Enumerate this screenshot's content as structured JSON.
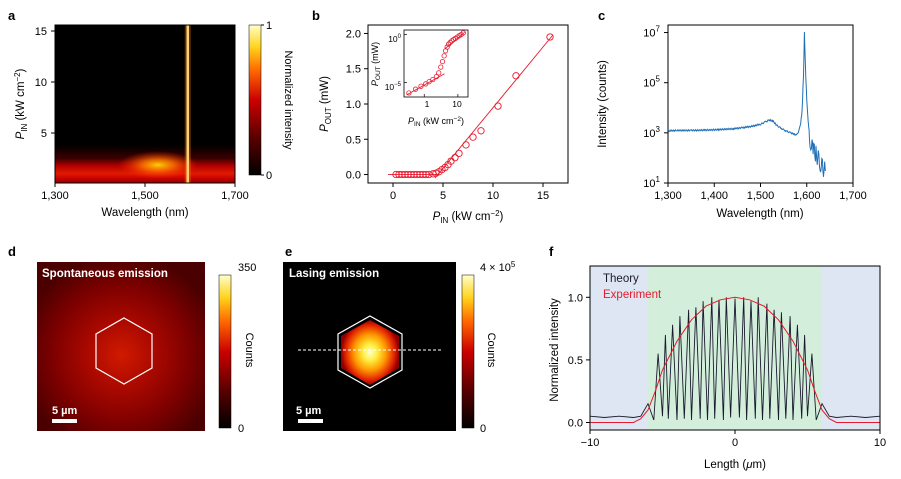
{
  "panels": {
    "a": {
      "letter": "a",
      "chart_data": {
        "type": "heatmap",
        "xlabel": "Wavelength (nm)",
        "ylabel_main": "P",
        "ylabel_sub": "IN",
        "ylabel_unit": " (kW cm",
        "ylabel_sup": "−2",
        "ylabel_end": ")",
        "x_ticks": [
          "1,300",
          "1,500",
          "1,700"
        ],
        "x_tick_values": [
          1300,
          1500,
          1700
        ],
        "y_ticks": [
          "5",
          "10",
          "15"
        ],
        "y_tick_values": [
          5,
          10,
          15
        ],
        "xlim": [
          1300,
          1700
        ],
        "ylim": [
          0.3,
          16
        ],
        "lasing_wavelength": 1595,
        "colorbar": {
          "label": "Normalized intensity",
          "ticks": [
            "0",
            "1"
          ],
          "range": [
            0,
            1
          ]
        }
      }
    },
    "b": {
      "letter": "b",
      "chart_data": {
        "type": "scatter",
        "xlabel_main": "P",
        "xlabel_sub": "IN",
        "xlabel_unit": " (kW cm",
        "xlabel_sup": "−2",
        "xlabel_end": ")",
        "ylabel_main": "P",
        "ylabel_sub": "OUT",
        "ylabel_unit": " (mW)",
        "x_ticks": [
          "0",
          "5",
          "10",
          "15"
        ],
        "y_ticks": [
          "0.0",
          "0.5",
          "1.0",
          "1.5",
          "2.0"
        ],
        "xlim": [
          -2.5,
          17.5
        ],
        "ylim": [
          -0.12,
          2.12
        ],
        "x": [
          0.3,
          0.6,
          0.9,
          1.2,
          1.5,
          1.8,
          2.1,
          2.4,
          2.7,
          3.0,
          3.3,
          3.6,
          4.0,
          4.3,
          4.6,
          4.9,
          5.2,
          5.5,
          5.8,
          6.2,
          6.6,
          7.3,
          8.0,
          8.8,
          10.5,
          12.3,
          15.7
        ],
        "y": [
          0.0,
          0.0,
          0.0,
          0.0,
          0.0,
          0.0,
          0.0,
          0.0,
          0.0,
          0.0,
          0.0,
          0.0,
          0.01,
          0.02,
          0.04,
          0.07,
          0.1,
          0.14,
          0.19,
          0.24,
          0.3,
          0.42,
          0.53,
          0.62,
          0.97,
          1.4,
          1.95
        ],
        "fit_below": [
          [
            -0.5,
            0.0
          ],
          [
            4.5,
            0.0
          ]
        ],
        "fit_above": [
          [
            4.2,
            -0.05
          ],
          [
            16.0,
            1.98
          ]
        ],
        "inset": {
          "ylabel_main": "P",
          "ylabel_sub": "OUT",
          "ylabel_unit": " (mW)",
          "xlabel_main": "P",
          "xlabel_sub": "IN",
          "xlabel_unit": " (kW cm",
          "xlabel_sup": "−2",
          "xlabel_end": ")",
          "x_ticks": [
            "1",
            "10"
          ],
          "y_ticks": [
            {
              "base": "10",
              "exp": "0"
            },
            {
              "base": "10",
              "exp": "−5"
            }
          ],
          "scale": "log-log",
          "x": [
            0.35,
            0.55,
            0.8,
            1.1,
            1.4,
            1.8,
            2.3,
            2.7,
            3.1,
            3.5,
            3.9,
            4.3,
            4.8,
            5.3,
            5.9,
            6.6,
            7.4,
            8.4,
            9.6,
            11,
            12.5,
            14.5
          ],
          "y": [
            8e-07,
            2e-06,
            4e-06,
            7e-06,
            1.2e-05,
            2e-05,
            4e-05,
            0.0001,
            0.0004,
            0.0015,
            0.006,
            0.02,
            0.05,
            0.1,
            0.15,
            0.22,
            0.3,
            0.4,
            0.55,
            0.75,
            1.0,
            1.5
          ]
        }
      }
    },
    "c": {
      "letter": "c",
      "chart_data": {
        "type": "line",
        "xlabel": "Wavelength (nm)",
        "ylabel": "Intensity (counts)",
        "x_ticks": [
          "1,300",
          "1,400",
          "1,500",
          "1,600",
          "1,700"
        ],
        "x_tick_values": [
          1300,
          1400,
          1500,
          1600,
          1700
        ],
        "y_ticks": [
          {
            "base": "10",
            "exp": "1"
          },
          {
            "base": "10",
            "exp": "3"
          },
          {
            "base": "10",
            "exp": "5"
          },
          {
            "base": "10",
            "exp": "7"
          }
        ],
        "y_tick_exps": [
          1,
          3,
          5,
          7
        ],
        "yscale": "log",
        "xlim": [
          1300,
          1700
        ],
        "ylim": [
          10,
          20000000
        ],
        "x": [
          1300,
          1320,
          1350,
          1380,
          1410,
          1440,
          1460,
          1480,
          1500,
          1510,
          1520,
          1528,
          1535,
          1545,
          1555,
          1565,
          1572,
          1578,
          1583,
          1587,
          1590,
          1593,
          1595,
          1597,
          1600,
          1603,
          1606,
          1610,
          1615,
          1620,
          1630,
          1640
        ],
        "y": [
          1200,
          1250,
          1250,
          1280,
          1350,
          1450,
          1600,
          1800,
          2200,
          2700,
          3300,
          2800,
          2000,
          1500,
          1200,
          1000,
          900,
          800,
          1200,
          2500,
          8000,
          200000,
          10000000,
          500000,
          20000,
          3000,
          800,
          300,
          200,
          150,
          60,
          30
        ]
      }
    },
    "d": {
      "letter": "d",
      "title": "Spontaneous emission",
      "scale_bar": "5 µm",
      "chart_data": {
        "type": "heatmap",
        "colorbar": {
          "label": "Counts",
          "ticks": [
            "0",
            "350"
          ],
          "range": [
            0,
            350
          ]
        }
      }
    },
    "e": {
      "letter": "e",
      "title": "Lasing emission",
      "scale_bar": "5 µm",
      "chart_data": {
        "type": "heatmap",
        "colorbar": {
          "label": "Counts",
          "ticks": [
            "0",
            "4 × 10"
          ],
          "top_tick_base": "4 × 10",
          "top_tick_exp": "5",
          "range": [
            0,
            400000
          ]
        }
      }
    },
    "f": {
      "letter": "f",
      "chart_data": {
        "type": "line",
        "xlabel_main": "Length (",
        "xlabel_mu": "μ",
        "xlabel_end": "m)",
        "ylabel": "Normalized intensity",
        "x_ticks": [
          "−10",
          "0",
          "10"
        ],
        "x_tick_values": [
          -10,
          0,
          10
        ],
        "y_ticks": [
          "0.0",
          "0.5",
          "1.0"
        ],
        "y_tick_values": [
          0,
          0.5,
          1
        ],
        "xlim": [
          -10,
          10
        ],
        "ylim": [
          -0.06,
          1.25
        ],
        "cavity_region": [
          -6,
          6
        ],
        "series": [
          {
            "name": "Theory",
            "color": "#1a1a2e",
            "x": [
              -10,
              -9,
              -8,
              -7,
              -6.5,
              -6,
              -5.6,
              -5.3,
              -5.0,
              -4.8,
              -4.6,
              -4.3,
              -4.0,
              -3.8,
              -3.5,
              -3.2,
              -3.0,
              -2.7,
              -2.4,
              -2.2,
              -1.9,
              -1.6,
              -1.4,
              -1.1,
              -0.8,
              -0.6,
              -0.3,
              0,
              0.3,
              0.6,
              0.8,
              1.1,
              1.4,
              1.6,
              1.9,
              2.2,
              2.4,
              2.7,
              3.0,
              3.2,
              3.5,
              3.8,
              4.0,
              4.3,
              4.6,
              4.8,
              5.0,
              5.3,
              5.6,
              6.0,
              6.5,
              7,
              8,
              9,
              10
            ],
            "y": [
              0.05,
              0.04,
              0.05,
              0.04,
              0.05,
              0.15,
              0.02,
              0.55,
              0.05,
              0.7,
              0.03,
              0.78,
              0.02,
              0.85,
              0.03,
              0.9,
              0.02,
              0.92,
              0.03,
              0.97,
              0.02,
              1.0,
              0.03,
              0.98,
              0.02,
              1.0,
              0.04,
              0.99,
              0.04,
              1.0,
              0.02,
              0.97,
              0.03,
              1.0,
              0.02,
              0.95,
              0.03,
              0.9,
              0.02,
              0.88,
              0.03,
              0.85,
              0.02,
              0.78,
              0.03,
              0.7,
              0.05,
              0.55,
              0.02,
              0.15,
              0.05,
              0.04,
              0.05,
              0.04,
              0.05
            ]
          },
          {
            "name": "Experiment",
            "color": "#e8192c",
            "x": [
              -10,
              -8,
              -7,
              -6.5,
              -6,
              -5.5,
              -5,
              -4,
              -3,
              -2,
              -1,
              0,
              1,
              2,
              3,
              4,
              5,
              5.5,
              6,
              6.5,
              7,
              8,
              10
            ],
            "y": [
              0.0,
              0.0,
              0.0,
              0.03,
              0.1,
              0.25,
              0.42,
              0.65,
              0.82,
              0.93,
              0.98,
              1.0,
              0.98,
              0.93,
              0.82,
              0.65,
              0.42,
              0.25,
              0.1,
              0.03,
              0.0,
              0.0,
              0.0
            ]
          }
        ]
      }
    }
  }
}
